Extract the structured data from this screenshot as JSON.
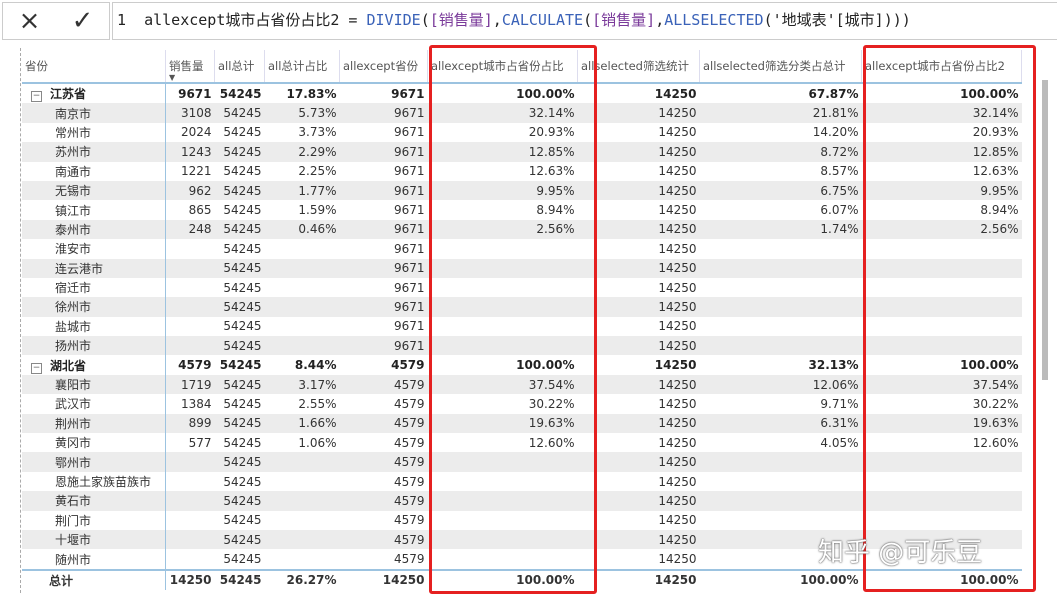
{
  "formula_bar": {
    "cancel_icon": "×",
    "confirm_icon": "✓",
    "line_no": "1",
    "measure": "allexcept城市占省份占比2 = ",
    "f1": "DIVIDE",
    "p1": "(",
    "m1": "[销售量]",
    "c1": ",",
    "f2": "CALCULATE",
    "p2": "(",
    "m2": "[销售量]",
    "c2": ",",
    "f3": "ALLSELECTED",
    "p3": "('地域表'[城市])))"
  },
  "columns": [
    "省份",
    "销售量",
    "all总计",
    "all总计占比",
    "allexcept省份",
    "allexcept城市占省份占比",
    "allselected筛选统计",
    "allselected筛选分类占总计",
    "allexcept城市占省份占比2"
  ],
  "sort_indicator": "▼",
  "rows": [
    {
      "type": "prov",
      "c": [
        "江苏省",
        "9671",
        "54245",
        "17.83%",
        "9671",
        "100.00%",
        "14250",
        "67.87%",
        "100.00%"
      ]
    },
    {
      "c": [
        "南京市",
        "3108",
        "54245",
        "5.73%",
        "9671",
        "32.14%",
        "14250",
        "21.81%",
        "32.14%"
      ]
    },
    {
      "c": [
        "常州市",
        "2024",
        "54245",
        "3.73%",
        "9671",
        "20.93%",
        "14250",
        "14.20%",
        "20.93%"
      ]
    },
    {
      "c": [
        "苏州市",
        "1243",
        "54245",
        "2.29%",
        "9671",
        "12.85%",
        "14250",
        "8.72%",
        "12.85%"
      ]
    },
    {
      "c": [
        "南通市",
        "1221",
        "54245",
        "2.25%",
        "9671",
        "12.63%",
        "14250",
        "8.57%",
        "12.63%"
      ]
    },
    {
      "c": [
        "无锡市",
        "962",
        "54245",
        "1.77%",
        "9671",
        "9.95%",
        "14250",
        "6.75%",
        "9.95%"
      ]
    },
    {
      "c": [
        "镇江市",
        "865",
        "54245",
        "1.59%",
        "9671",
        "8.94%",
        "14250",
        "6.07%",
        "8.94%"
      ]
    },
    {
      "c": [
        "泰州市",
        "248",
        "54245",
        "0.46%",
        "9671",
        "2.56%",
        "14250",
        "1.74%",
        "2.56%"
      ]
    },
    {
      "c": [
        "淮安市",
        "",
        "54245",
        "",
        "9671",
        "",
        "14250",
        "",
        ""
      ]
    },
    {
      "c": [
        "连云港市",
        "",
        "54245",
        "",
        "9671",
        "",
        "14250",
        "",
        ""
      ]
    },
    {
      "c": [
        "宿迁市",
        "",
        "54245",
        "",
        "9671",
        "",
        "14250",
        "",
        ""
      ]
    },
    {
      "c": [
        "徐州市",
        "",
        "54245",
        "",
        "9671",
        "",
        "14250",
        "",
        ""
      ]
    },
    {
      "c": [
        "盐城市",
        "",
        "54245",
        "",
        "9671",
        "",
        "14250",
        "",
        ""
      ]
    },
    {
      "c": [
        "扬州市",
        "",
        "54245",
        "",
        "9671",
        "",
        "14250",
        "",
        ""
      ]
    },
    {
      "type": "prov",
      "c": [
        "湖北省",
        "4579",
        "54245",
        "8.44%",
        "4579",
        "100.00%",
        "14250",
        "32.13%",
        "100.00%"
      ]
    },
    {
      "c": [
        "襄阳市",
        "1719",
        "54245",
        "3.17%",
        "4579",
        "37.54%",
        "14250",
        "12.06%",
        "37.54%"
      ]
    },
    {
      "c": [
        "武汉市",
        "1384",
        "54245",
        "2.55%",
        "4579",
        "30.22%",
        "14250",
        "9.71%",
        "30.22%"
      ]
    },
    {
      "c": [
        "荆州市",
        "899",
        "54245",
        "1.66%",
        "4579",
        "19.63%",
        "14250",
        "6.31%",
        "19.63%"
      ]
    },
    {
      "c": [
        "黄冈市",
        "577",
        "54245",
        "1.06%",
        "4579",
        "12.60%",
        "14250",
        "4.05%",
        "12.60%"
      ]
    },
    {
      "c": [
        "鄂州市",
        "",
        "54245",
        "",
        "4579",
        "",
        "14250",
        "",
        ""
      ]
    },
    {
      "c": [
        "恩施土家族苗族市",
        "",
        "54245",
        "",
        "4579",
        "",
        "14250",
        "",
        ""
      ]
    },
    {
      "c": [
        "黄石市",
        "",
        "54245",
        "",
        "4579",
        "",
        "14250",
        "",
        ""
      ]
    },
    {
      "c": [
        "荆门市",
        "",
        "54245",
        "",
        "4579",
        "",
        "14250",
        "",
        ""
      ]
    },
    {
      "c": [
        "十堰市",
        "",
        "54245",
        "",
        "4579",
        "",
        "14250",
        "",
        ""
      ]
    },
    {
      "c": [
        "随州市",
        "",
        "54245",
        "",
        "4579",
        "",
        "14250",
        "",
        ""
      ]
    },
    {
      "type": "tot",
      "c": [
        "总计",
        "14250",
        "54245",
        "26.27%",
        "14250",
        "100.00%",
        "14250",
        "100.00%",
        "100.00%"
      ]
    }
  ],
  "expand_icon": "⊟",
  "watermark": "知乎 @可乐豆",
  "highlight_color": "#e52020"
}
